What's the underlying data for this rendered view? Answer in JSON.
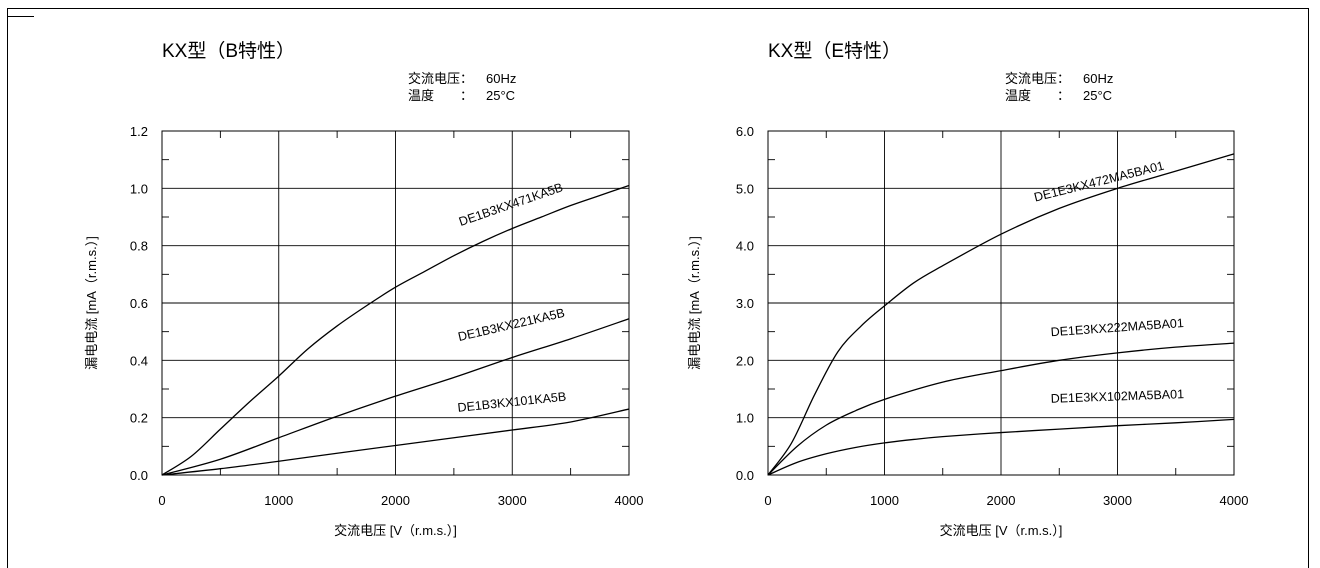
{
  "chart_data": [
    {
      "type": "line",
      "title": "KX型（B特性）",
      "conditions": [
        {
          "label": "交流电压：",
          "value": "60Hz"
        },
        {
          "label": "温度　　：",
          "value": "25°C"
        }
      ],
      "xlabel": "交流电压 [V（r.m.s.）]",
      "ylabel": "漏电电流 [mA（r.m.s.）]",
      "xlim": [
        0,
        4000
      ],
      "ylim": [
        0,
        1.2
      ],
      "xticks": [
        0,
        1000,
        2000,
        3000,
        4000
      ],
      "yticks": [
        0.0,
        0.2,
        0.4,
        0.6,
        0.8,
        1.0,
        1.2
      ],
      "xtick_labels": [
        "0",
        "1000",
        "2000",
        "3000",
        "4000"
      ],
      "ytick_labels": [
        "0.0",
        "0.2",
        "0.4",
        "0.6",
        "0.8",
        "1.0",
        "1.2"
      ],
      "grid": true,
      "series": [
        {
          "name": "DE1B3KX471KA5B",
          "x": [
            0,
            250,
            500,
            750,
            1000,
            1250,
            1500,
            1750,
            2000,
            2250,
            2500,
            2750,
            3000,
            3250,
            3500,
            3750,
            4000
          ],
          "y": [
            0,
            0.065,
            0.16,
            0.255,
            0.345,
            0.44,
            0.52,
            0.59,
            0.655,
            0.71,
            0.765,
            0.815,
            0.86,
            0.9,
            0.94,
            0.975,
            1.01
          ]
        },
        {
          "name": "DE1B3KX221KA5B",
          "x": [
            0,
            500,
            1000,
            1500,
            2000,
            2500,
            3000,
            3500,
            4000
          ],
          "y": [
            0,
            0.055,
            0.13,
            0.205,
            0.275,
            0.34,
            0.41,
            0.475,
            0.545
          ]
        },
        {
          "name": "DE1B3KX101KA5B",
          "x": [
            0,
            500,
            1000,
            1500,
            2000,
            2500,
            3000,
            3500,
            4000
          ],
          "y": [
            0,
            0.022,
            0.048,
            0.076,
            0.103,
            0.13,
            0.157,
            0.185,
            0.23
          ]
        }
      ],
      "labels": [
        {
          "text": "DE1B3KX471KA5B",
          "at_x": 3000,
          "at_y": 0.93,
          "angle": -19
        },
        {
          "text": "DE1B3KX221KA5B",
          "at_x": 3000,
          "at_y": 0.51,
          "angle": -13
        },
        {
          "text": "DE1B3KX101KA5B",
          "at_x": 3000,
          "at_y": 0.24,
          "angle": -6
        }
      ]
    },
    {
      "type": "line",
      "title": "KX型（E特性）",
      "conditions": [
        {
          "label": "交流电压：",
          "value": "60Hz"
        },
        {
          "label": "温度　　：",
          "value": "25°C"
        }
      ],
      "xlabel": "交流电压 [V（r.m.s.）]",
      "ylabel": "漏电电流 [mA（r.m.s.）]",
      "xlim": [
        0,
        4000
      ],
      "ylim": [
        0,
        6.0
      ],
      "xticks": [
        0,
        1000,
        2000,
        3000,
        4000
      ],
      "yticks": [
        0.0,
        1.0,
        2.0,
        3.0,
        4.0,
        5.0,
        6.0
      ],
      "xtick_labels": [
        "0",
        "1000",
        "2000",
        "3000",
        "4000"
      ],
      "ytick_labels": [
        "0.0",
        "1.0",
        "2.0",
        "3.0",
        "4.0",
        "5.0",
        "6.0"
      ],
      "grid": true,
      "series": [
        {
          "name": "DE1E3KX472MA5BA01",
          "x": [
            0,
            200,
            400,
            600,
            800,
            1000,
            1250,
            1500,
            2000,
            2500,
            3000,
            3500,
            4000
          ],
          "y": [
            0,
            0.55,
            1.4,
            2.15,
            2.6,
            2.95,
            3.35,
            3.65,
            4.2,
            4.65,
            5.0,
            5.3,
            5.6
          ]
        },
        {
          "name": "DE1E3KX222MA5BA01",
          "x": [
            0,
            250,
            500,
            750,
            1000,
            1500,
            2000,
            2500,
            3000,
            3500,
            4000
          ],
          "y": [
            0,
            0.5,
            0.87,
            1.12,
            1.32,
            1.62,
            1.82,
            2.0,
            2.13,
            2.23,
            2.3
          ]
        },
        {
          "name": "DE1E3KX102MA5BA01",
          "x": [
            0,
            250,
            500,
            750,
            1000,
            1250,
            1500,
            2000,
            2500,
            3000,
            3500,
            4000
          ],
          "y": [
            0,
            0.22,
            0.37,
            0.48,
            0.56,
            0.62,
            0.67,
            0.74,
            0.8,
            0.86,
            0.91,
            0.97
          ]
        }
      ],
      "labels": [
        {
          "text": "DE1E3KX472MA5BA01",
          "at_x": 2850,
          "at_y": 5.05,
          "angle": -14
        },
        {
          "text": "DE1E3KX222MA5BA01",
          "at_x": 3000,
          "at_y": 2.5,
          "angle": -4
        },
        {
          "text": "DE1E3KX102MA5BA01",
          "at_x": 3000,
          "at_y": 1.3,
          "angle": -2
        }
      ]
    }
  ]
}
